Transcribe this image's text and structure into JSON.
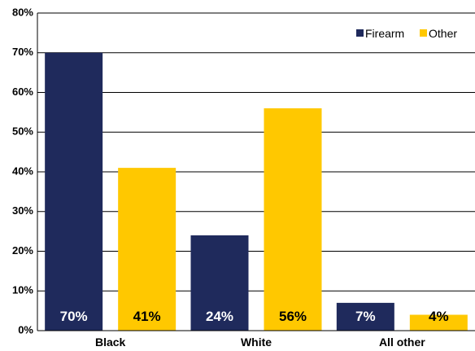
{
  "chart_data": {
    "type": "bar",
    "categories": [
      "Black",
      "White",
      "All other"
    ],
    "series": [
      {
        "name": "Firearm",
        "values": [
          70,
          24,
          7
        ],
        "color": "#1f2a5c",
        "labels": [
          "70%",
          "24%",
          "7%"
        ],
        "label_color": "#ffffff"
      },
      {
        "name": "Other",
        "values": [
          41,
          56,
          4
        ],
        "color": "#ffc800",
        "labels": [
          "41%",
          "56%",
          "4%"
        ],
        "label_color": "#000000"
      }
    ],
    "ylim": [
      0,
      80
    ],
    "yticks": [
      0,
      10,
      20,
      30,
      40,
      50,
      60,
      70,
      80
    ],
    "ytick_labels": [
      "0%",
      "10%",
      "20%",
      "30%",
      "40%",
      "50%",
      "60%",
      "70%",
      "80%"
    ],
    "title": "",
    "xlabel": "",
    "ylabel": "",
    "grid": true,
    "legend_position": "top-right"
  }
}
